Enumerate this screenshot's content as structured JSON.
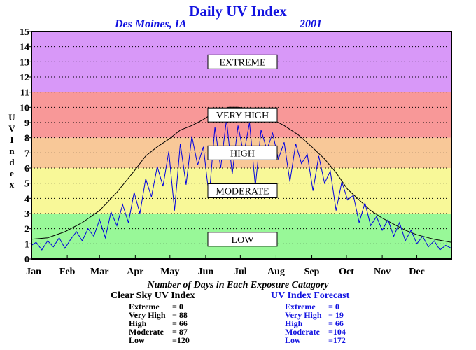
{
  "title": "Daily UV Index",
  "location": "Des Moines, IA",
  "year": "2001",
  "y_axis_label": "UV Index",
  "subtitle": "Number of Days in Each Exposure Catagory",
  "colors": {
    "extreme": "#d898f8",
    "very_high": "#f89898",
    "high": "#f8c898",
    "moderate": "#f8f898",
    "low": "#98f898",
    "clear_sky_line": "#000000",
    "forecast_line": "#0000e0",
    "title": "#1212e0"
  },
  "clear_sky_stats": {
    "heading": "Clear Sky UV Index",
    "rows": [
      {
        "label": "Extreme",
        "value": "=    0"
      },
      {
        "label": "Very High",
        "value": "= 88"
      },
      {
        "label": "High",
        "value": "= 66"
      },
      {
        "label": "Moderate",
        "value": "= 87"
      },
      {
        "label": "Low",
        "value": "=120"
      }
    ]
  },
  "forecast_stats": {
    "heading": "UV Index Forecast",
    "rows": [
      {
        "label": "Extreme",
        "value": "=    0"
      },
      {
        "label": "Very High",
        "value": "= 19"
      },
      {
        "label": "High",
        "value": "= 66"
      },
      {
        "label": "Moderate",
        "value": "=104"
      },
      {
        "label": "Low",
        "value": "=172"
      }
    ]
  },
  "chart_data": {
    "type": "line",
    "title": "Daily UV Index",
    "ylabel": "UV Index",
    "ylim": [
      0,
      15
    ],
    "yticks": [
      0,
      1,
      2,
      3,
      4,
      5,
      6,
      7,
      8,
      9,
      10,
      11,
      12,
      13,
      14,
      15
    ],
    "grid": true,
    "x_tick_labels": [
      "Jan",
      "Feb",
      "Mar",
      "Apr",
      "May",
      "Jun",
      "Jul",
      "Aug",
      "Sep",
      "Oct",
      "Nov",
      "Dec"
    ],
    "bands": [
      {
        "label": "LOW",
        "from": 0,
        "to": 3
      },
      {
        "label": "MODERATE",
        "from": 3,
        "to": 6
      },
      {
        "label": "HIGH",
        "from": 6,
        "to": 8
      },
      {
        "label": "VERY HIGH",
        "from": 8,
        "to": 11
      },
      {
        "label": "EXTREME",
        "from": 11,
        "to": 15
      }
    ],
    "series": [
      {
        "key": "clear_sky",
        "points": [
          [
            1,
            1.3
          ],
          [
            15,
            1.4
          ],
          [
            30,
            1.8
          ],
          [
            45,
            2.4
          ],
          [
            60,
            3.2
          ],
          [
            75,
            4.4
          ],
          [
            90,
            5.8
          ],
          [
            100,
            6.8
          ],
          [
            110,
            7.4
          ],
          [
            120,
            7.9
          ],
          [
            130,
            8.5
          ],
          [
            140,
            8.8
          ],
          [
            150,
            9.2
          ],
          [
            160,
            9.7
          ],
          [
            172,
            10.0
          ],
          [
            180,
            10.0
          ],
          [
            190,
            9.9
          ],
          [
            200,
            9.6
          ],
          [
            210,
            9.2
          ],
          [
            220,
            8.8
          ],
          [
            232,
            8.2
          ],
          [
            244,
            7.4
          ],
          [
            255,
            6.6
          ],
          [
            265,
            5.7
          ],
          [
            275,
            4.6
          ],
          [
            285,
            3.9
          ],
          [
            295,
            3.2
          ],
          [
            305,
            2.7
          ],
          [
            315,
            2.3
          ],
          [
            325,
            1.9
          ],
          [
            335,
            1.6
          ],
          [
            350,
            1.3
          ],
          [
            365,
            1.1
          ]
        ]
      },
      {
        "key": "forecast",
        "points": [
          [
            1,
            0.9
          ],
          [
            5,
            1.1
          ],
          [
            10,
            0.6
          ],
          [
            15,
            1.2
          ],
          [
            20,
            0.8
          ],
          [
            25,
            1.4
          ],
          [
            30,
            0.7
          ],
          [
            35,
            1.3
          ],
          [
            40,
            1.8
          ],
          [
            45,
            1.2
          ],
          [
            50,
            2.0
          ],
          [
            55,
            1.5
          ],
          [
            60,
            2.6
          ],
          [
            65,
            1.4
          ],
          [
            70,
            3.1
          ],
          [
            75,
            2.2
          ],
          [
            80,
            3.6
          ],
          [
            85,
            2.4
          ],
          [
            90,
            4.4
          ],
          [
            95,
            3.0
          ],
          [
            100,
            5.3
          ],
          [
            105,
            4.1
          ],
          [
            110,
            6.1
          ],
          [
            115,
            4.8
          ],
          [
            120,
            7.1
          ],
          [
            125,
            3.2
          ],
          [
            130,
            7.6
          ],
          [
            135,
            4.9
          ],
          [
            140,
            8.1
          ],
          [
            145,
            6.2
          ],
          [
            150,
            7.4
          ],
          [
            155,
            4.1
          ],
          [
            160,
            8.7
          ],
          [
            165,
            6.0
          ],
          [
            170,
            9.2
          ],
          [
            175,
            5.6
          ],
          [
            180,
            8.8
          ],
          [
            185,
            6.9
          ],
          [
            190,
            9.0
          ],
          [
            195,
            4.8
          ],
          [
            200,
            8.5
          ],
          [
            205,
            7.2
          ],
          [
            210,
            8.3
          ],
          [
            215,
            6.6
          ],
          [
            220,
            7.7
          ],
          [
            225,
            5.1
          ],
          [
            230,
            7.6
          ],
          [
            235,
            6.3
          ],
          [
            240,
            6.9
          ],
          [
            245,
            4.5
          ],
          [
            250,
            6.8
          ],
          [
            255,
            5.0
          ],
          [
            260,
            5.8
          ],
          [
            265,
            3.2
          ],
          [
            270,
            5.1
          ],
          [
            275,
            3.9
          ],
          [
            280,
            4.2
          ],
          [
            285,
            2.4
          ],
          [
            290,
            3.7
          ],
          [
            295,
            2.2
          ],
          [
            300,
            2.8
          ],
          [
            305,
            1.9
          ],
          [
            310,
            2.6
          ],
          [
            315,
            1.5
          ],
          [
            320,
            2.4
          ],
          [
            325,
            1.2
          ],
          [
            330,
            1.9
          ],
          [
            335,
            1.0
          ],
          [
            340,
            1.5
          ],
          [
            345,
            0.8
          ],
          [
            350,
            1.2
          ],
          [
            355,
            0.6
          ],
          [
            360,
            0.9
          ],
          [
            365,
            0.7
          ]
        ]
      }
    ]
  }
}
